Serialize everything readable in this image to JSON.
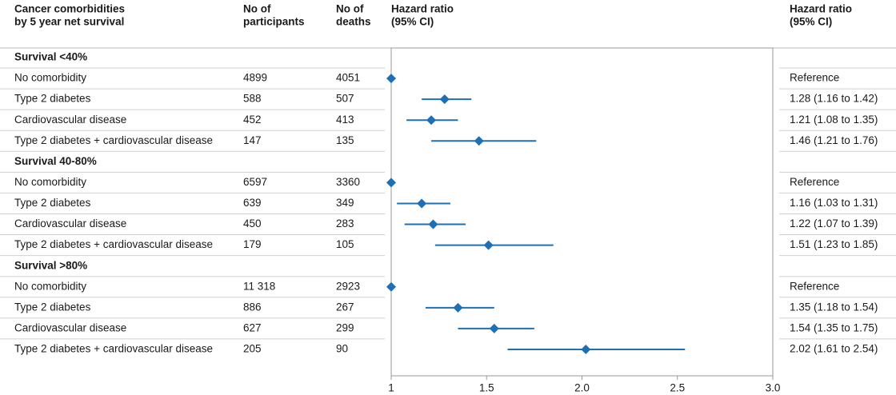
{
  "chart_data": {
    "type": "forest",
    "headers": {
      "label": [
        "Cancer comorbidities",
        "by 5 year net survival"
      ],
      "participants": [
        "No of",
        "participants"
      ],
      "deaths": [
        "No of",
        "deaths"
      ],
      "plot": [
        "Hazard ratio",
        "(95% CI)"
      ],
      "ci": [
        "Hazard ratio",
        "(95% CI)"
      ]
    },
    "color": "#1f6fb5",
    "xlim": [
      1,
      3
    ],
    "xticks": [
      1,
      1.5,
      {
        "value": 2,
        "label": "2.0"
      },
      2.5,
      {
        "value": 3,
        "label": "3.0"
      }
    ],
    "groups": [
      {
        "name": "Survival <40%",
        "rows": [
          {
            "label": "No comorbidity",
            "participants": "4899",
            "deaths": "4051",
            "hr": 1,
            "hr_label": "Reference"
          },
          {
            "label": "Type 2 diabetes",
            "participants": "588",
            "deaths": "507",
            "hr": 1.28,
            "lower": 1.16,
            "upper": 1.42,
            "hr_label": "1.28 (1.16 to 1.42)"
          },
          {
            "label": "Cardiovascular disease",
            "participants": "452",
            "deaths": "413",
            "hr": 1.21,
            "lower": 1.08,
            "upper": 1.35,
            "hr_label": "1.21 (1.08 to 1.35)"
          },
          {
            "label": "Type 2 diabetes + cardiovascular disease",
            "participants": "147",
            "deaths": "135",
            "hr": 1.46,
            "lower": 1.21,
            "upper": 1.76,
            "hr_label": "1.46 (1.21 to 1.76)"
          }
        ]
      },
      {
        "name": "Survival 40-80%",
        "rows": [
          {
            "label": "No comorbidity",
            "participants": "6597",
            "deaths": "3360",
            "hr": 1,
            "hr_label": "Reference"
          },
          {
            "label": "Type 2 diabetes",
            "participants": "639",
            "deaths": "349",
            "hr": 1.16,
            "lower": 1.03,
            "upper": 1.31,
            "hr_label": "1.16 (1.03 to 1.31)"
          },
          {
            "label": "Cardiovascular disease",
            "participants": "450",
            "deaths": "283",
            "hr": 1.22,
            "lower": 1.07,
            "upper": 1.39,
            "hr_label": "1.22 (1.07 to 1.39)"
          },
          {
            "label": "Type 2 diabetes + cardiovascular disease",
            "participants": "179",
            "deaths": "105",
            "hr": 1.51,
            "lower": 1.23,
            "upper": 1.85,
            "hr_label": "1.51 (1.23 to 1.85)"
          }
        ]
      },
      {
        "name": "Survival >80%",
        "rows": [
          {
            "label": "No comorbidity",
            "participants": "11 318",
            "deaths": "2923",
            "hr": 1,
            "hr_label": "Reference"
          },
          {
            "label": "Type 2 diabetes",
            "participants": "886",
            "deaths": "267",
            "hr": 1.35,
            "lower": 1.18,
            "upper": 1.54,
            "hr_label": "1.35 (1.18 to 1.54)"
          },
          {
            "label": "Cardiovascular disease",
            "participants": "627",
            "deaths": "299",
            "hr": 1.54,
            "lower": 1.35,
            "upper": 1.75,
            "hr_label": "1.54 (1.35 to 1.75)"
          },
          {
            "label": "Type 2 diabetes + cardiovascular disease",
            "participants": "205",
            "deaths": "90",
            "hr": 2.02,
            "lower": 1.61,
            "upper": 2.54,
            "hr_label": "2.02 (1.61 to 2.54)"
          }
        ]
      }
    ]
  }
}
